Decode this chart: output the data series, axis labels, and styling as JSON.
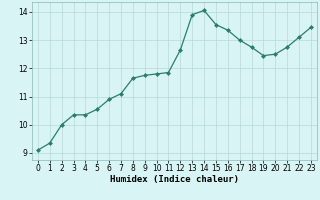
{
  "x": [
    0,
    1,
    2,
    3,
    4,
    5,
    6,
    7,
    8,
    9,
    10,
    11,
    12,
    13,
    14,
    15,
    16,
    17,
    18,
    19,
    20,
    21,
    22,
    23
  ],
  "y": [
    9.1,
    9.35,
    10.0,
    10.35,
    10.35,
    10.55,
    10.9,
    11.1,
    11.65,
    11.75,
    11.8,
    11.85,
    12.65,
    13.9,
    14.05,
    13.55,
    13.35,
    13.0,
    12.75,
    12.45,
    12.5,
    12.75,
    13.1,
    13.45
  ],
  "xlabel": "Humidex (Indice chaleur)",
  "xlim": [
    -0.5,
    23.5
  ],
  "ylim": [
    8.75,
    14.35
  ],
  "yticks": [
    9,
    10,
    11,
    12,
    13,
    14
  ],
  "xticks": [
    0,
    1,
    2,
    3,
    4,
    5,
    6,
    7,
    8,
    9,
    10,
    11,
    12,
    13,
    14,
    15,
    16,
    17,
    18,
    19,
    20,
    21,
    22,
    23
  ],
  "line_color": "#2a7d6f",
  "marker": "D",
  "marker_size": 2.0,
  "bg_color": "#d8f4f4",
  "grid_color": "#b8d8d8",
  "xlabel_fontsize": 6.5,
  "tick_fontsize": 5.5,
  "line_width": 0.9
}
